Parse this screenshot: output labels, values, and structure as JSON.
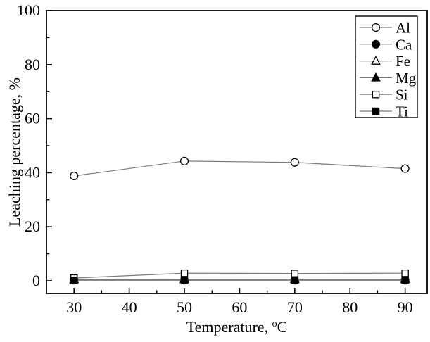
{
  "figure": {
    "background": "#ffffff",
    "frame_color": "#000000"
  },
  "chart_data": {
    "type": "line",
    "title": "",
    "xlabel": {
      "prefix": "Temperature, ",
      "sup": "o",
      "suffix": "C"
    },
    "ylabel": "Leaching percentage, %",
    "x": [
      30,
      50,
      70,
      90
    ],
    "series": [
      {
        "name": "Al",
        "marker": "circle-open",
        "values": [
          38.8,
          44.3,
          43.8,
          41.5
        ]
      },
      {
        "name": "Ca",
        "marker": "circle-filled",
        "values": [
          0.2,
          0.2,
          0.2,
          0.2
        ]
      },
      {
        "name": "Fe",
        "marker": "triangle-open",
        "values": [
          0.5,
          0.6,
          0.6,
          0.6
        ]
      },
      {
        "name": "Mg",
        "marker": "triangle-filled",
        "values": [
          0.5,
          0.5,
          0.5,
          0.5
        ]
      },
      {
        "name": "Si",
        "marker": "square-open",
        "values": [
          1.0,
          2.8,
          2.7,
          2.8
        ]
      },
      {
        "name": "Ti",
        "marker": "square-filled",
        "values": [
          0.2,
          0.2,
          0.2,
          0.2
        ]
      }
    ],
    "xlim": [
      25,
      94
    ],
    "ylim": [
      -4.7,
      100
    ],
    "x_ticks_major": [
      30,
      40,
      50,
      60,
      70,
      80,
      90
    ],
    "x_ticks_minor": [
      35,
      45,
      55,
      65,
      75,
      85
    ],
    "y_ticks_major": [
      0,
      20,
      40,
      60,
      80,
      100
    ],
    "y_ticks_minor": [
      10,
      30,
      50,
      70,
      90
    ],
    "grid": "off",
    "legend_position": "top-right",
    "legend_entries": [
      "Al",
      "Ca",
      "Fe",
      "Mg",
      "Si",
      "Ti"
    ],
    "colors": {
      "series_line": "#7a7a7a",
      "marker_stroke": "#000000",
      "marker_open_fill": "#ffffff",
      "marker_filled_fill": "#000000",
      "axis": "#000000",
      "text": "#000000",
      "background": "#ffffff"
    }
  }
}
